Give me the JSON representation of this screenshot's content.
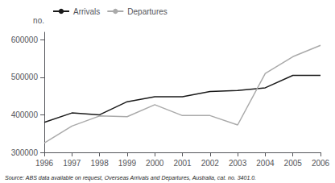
{
  "chart_data": {
    "type": "line",
    "x": [
      1996,
      1997,
      1998,
      1999,
      2000,
      2001,
      2002,
      2003,
      2004,
      2005,
      2006
    ],
    "series": [
      {
        "name": "Arrivals",
        "color": "#1a1a1a",
        "values": [
          380000,
          405000,
          400000,
          435000,
          448000,
          448000,
          462000,
          465000,
          472000,
          505000,
          505000
        ]
      },
      {
        "name": "Departures",
        "color": "#aaaaaa",
        "values": [
          325000,
          370000,
          397000,
          395000,
          427000,
          398000,
          398000,
          373000,
          510000,
          555000,
          585000
        ]
      }
    ],
    "xlim": [
      1996,
      2006
    ],
    "xticks": [
      1996,
      1997,
      1998,
      1999,
      2000,
      2001,
      2002,
      2003,
      2004,
      2005,
      2006
    ],
    "ylim": [
      300000,
      620000
    ],
    "yticks": [
      300000,
      400000,
      500000,
      600000
    ],
    "ylabel": "no.",
    "annotations": [
      "Source: ABS data available on request, Overseas Arrivals and Departures, Australia, cat. no. 3401.0."
    ],
    "legend": "upper left",
    "grid": false
  }
}
